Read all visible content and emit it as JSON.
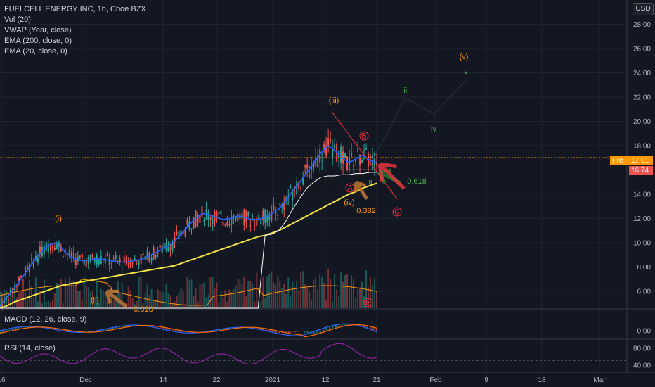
{
  "header": {
    "title": "FUELCELL ENERGY INC, 1h, Cboe BZX",
    "indicators": [
      "Vol (20)",
      "VWAP (Year, close)",
      "EMA (200, close, 0)",
      "EMA (20, close, 0)"
    ],
    "currency": "USD"
  },
  "price_tags": {
    "pre_label": "Pre",
    "pre_value": "17.01",
    "last_value": "16.74"
  },
  "macd_label": "MACD (12, 26, close, 9)",
  "rsi_label": "RSI (14, close)",
  "colors": {
    "background": "#131722",
    "up": "#26a69a",
    "down": "#ef5350",
    "ema20": "#2962ff",
    "ema200": "#f5e342",
    "vwap": "#ffffff",
    "volma": "#ff9800",
    "macd": "#2962ff",
    "signal": "#ff6d00",
    "rsi": "#9c27b0"
  },
  "annotations": {
    "i": "(i)",
    "ii": "(ii)",
    "iii": "(iii)",
    "iv": "(iv)",
    "v": "(v)",
    "g_ii": "ii",
    "g_iii": "iii",
    "g_iv": "iv",
    "g_v": "v",
    "a": "A",
    "b": "B",
    "c": "C",
    "e": "E",
    "fib1": "0.618",
    "fib2": "0.382",
    "fib3": "0.618"
  },
  "chart_data": [
    {
      "type": "candlestick",
      "x_ticks": [
        "16",
        "Dec",
        "14",
        "22",
        "2021",
        "12",
        "21",
        "Feb",
        "9",
        "18",
        "Mar"
      ],
      "y_ticks": [
        "6.00",
        "8.00",
        "10.00",
        "12.00",
        "14.00",
        "16.00",
        "18.00",
        "20.00",
        "22.00",
        "24.00",
        "26.00",
        "28.00"
      ],
      "ylim": [
        4.6,
        30
      ],
      "series": [
        {
          "name": "EMA (20, close, 0)",
          "values": [
            4.8,
            5.5,
            6.2,
            7.0,
            7.8,
            8.6,
            9.3,
            9.8,
            10.0,
            9.4,
            8.9,
            8.6,
            8.5,
            8.6,
            8.7,
            8.6,
            8.5,
            8.4,
            8.4,
            8.5,
            8.6,
            8.8,
            9.1,
            9.4,
            9.7,
            10.1,
            10.7,
            11.4,
            12.0,
            12.4,
            12.3,
            12.1,
            11.9,
            12.0,
            12.2,
            12.1,
            11.9,
            11.9,
            12.1,
            12.4,
            12.8,
            13.5,
            14.3,
            15.0,
            15.8,
            16.6,
            17.4,
            18.0,
            17.6,
            17.0,
            16.6,
            16.9,
            17.2,
            16.8,
            16.6
          ]
        },
        {
          "name": "EMA (200, close, 0)",
          "values": [
            4.6,
            4.8,
            5.1,
            5.3,
            5.5,
            5.7,
            5.9,
            6.1,
            6.3,
            6.5,
            6.6,
            6.7,
            6.8,
            6.9,
            7.0,
            7.1,
            7.2,
            7.3,
            7.4,
            7.5,
            7.6,
            7.7,
            7.8,
            7.9,
            8.0,
            8.1,
            8.3,
            8.5,
            8.7,
            8.9,
            9.1,
            9.3,
            9.5,
            9.7,
            9.9,
            10.1,
            10.3,
            10.5,
            10.6,
            10.8,
            11.0,
            11.3,
            11.6,
            11.9,
            12.2,
            12.5,
            12.8,
            13.1,
            13.4,
            13.7,
            14.0,
            14.2,
            14.5,
            14.7,
            14.9
          ]
        },
        {
          "name": "VWAP (Year, close)",
          "values": [
            4.6,
            4.6,
            4.6,
            4.6,
            4.6,
            4.6,
            4.6,
            4.6,
            4.6,
            4.6,
            4.6,
            4.6,
            4.6,
            4.6,
            4.6,
            4.6,
            4.6,
            4.6,
            4.6,
            4.6,
            4.6,
            4.6,
            4.6,
            4.6,
            4.6,
            4.6,
            4.6,
            4.6,
            4.6,
            4.6,
            4.6,
            4.6,
            4.6,
            4.6,
            4.6,
            4.6,
            4.6,
            4.6,
            10.6,
            10.7,
            11.0,
            11.8,
            12.8,
            13.7,
            14.5,
            15.0,
            15.4,
            15.5,
            15.5,
            15.6,
            15.6,
            15.7,
            15.7,
            15.8,
            15.8
          ]
        }
      ]
    },
    {
      "type": "line",
      "name": "MACD (12, 26, close, 9)",
      "y_ticks": [
        "0.00"
      ]
    },
    {
      "type": "line",
      "name": "RSI (14, close)",
      "y_ticks": [
        "80.00",
        "40.00"
      ]
    }
  ]
}
